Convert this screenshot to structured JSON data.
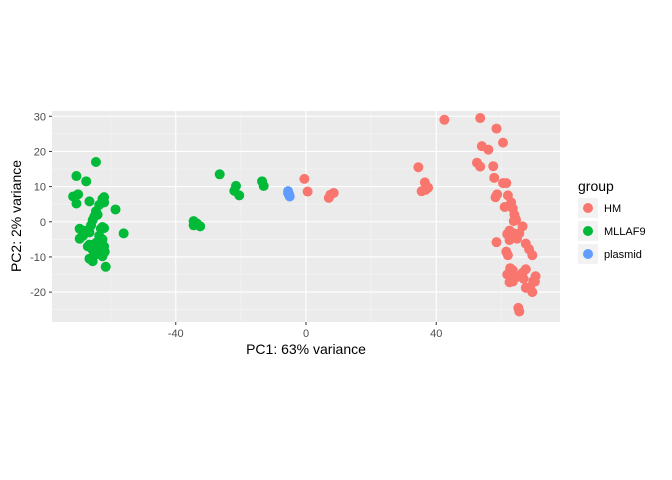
{
  "chart_data": {
    "type": "scatter",
    "xlabel": "PC1: 63% variance",
    "ylabel": "PC2: 2% variance",
    "xlim": [
      -78,
      78
    ],
    "ylim": [
      -28.5,
      31.5
    ],
    "x_ticks": [
      -40,
      0,
      40
    ],
    "y_ticks": [
      -20,
      -10,
      0,
      10,
      20,
      30
    ],
    "grid": true,
    "legend": {
      "title": "group",
      "position": "right"
    },
    "series": [
      {
        "name": "HM",
        "color": "#F8766D",
        "points": [
          [
            -0.5,
            12.2
          ],
          [
            0.5,
            8.6
          ],
          [
            7,
            6.8
          ],
          [
            7.5,
            7.7
          ],
          [
            8.5,
            8.2
          ],
          [
            34.5,
            15.5
          ],
          [
            35.5,
            8.7
          ],
          [
            36.5,
            11.2
          ],
          [
            37.5,
            9.7
          ],
          [
            36.8,
            9.1
          ],
          [
            42.5,
            29
          ],
          [
            53.5,
            29.5
          ],
          [
            52.5,
            16.8
          ],
          [
            53.5,
            15.7
          ],
          [
            54,
            21.5
          ],
          [
            56,
            20.5
          ],
          [
            57.5,
            15.8
          ],
          [
            58.5,
            26.5
          ],
          [
            57.8,
            12.5
          ],
          [
            58.2,
            7
          ],
          [
            58.7,
            7.8
          ],
          [
            58.5,
            -5.8
          ],
          [
            60.5,
            22.5
          ],
          [
            60.5,
            11
          ],
          [
            61.5,
            11
          ],
          [
            61,
            4.2
          ],
          [
            62,
            7.5
          ],
          [
            63,
            5.5
          ],
          [
            63.5,
            3.8
          ],
          [
            64,
            2
          ],
          [
            63.8,
            0.2
          ],
          [
            64.5,
            0.6
          ],
          [
            62.5,
            -2.5
          ],
          [
            61.8,
            -3.5
          ],
          [
            62.5,
            -5.2
          ],
          [
            61.5,
            -8.5
          ],
          [
            62,
            -9.5
          ],
          [
            63.8,
            -3.3
          ],
          [
            64.8,
            -4.8
          ],
          [
            65.5,
            -3.3
          ],
          [
            66.5,
            -1.3
          ],
          [
            67.5,
            -6.2
          ],
          [
            68.5,
            -7.8
          ],
          [
            69.5,
            -9.5
          ],
          [
            70.5,
            -15.5
          ],
          [
            69.8,
            -16.8
          ],
          [
            68.8,
            -18.5
          ],
          [
            69.5,
            -20
          ],
          [
            70.3,
            -17
          ],
          [
            67.5,
            -13.5
          ],
          [
            66.5,
            -14.5
          ],
          [
            65.5,
            -15.5
          ],
          [
            64.5,
            -15.8
          ],
          [
            63.5,
            -17
          ],
          [
            62.5,
            -17.2
          ],
          [
            61.8,
            -15
          ],
          [
            62.7,
            -13.2
          ],
          [
            63.5,
            -13.8
          ],
          [
            66.8,
            -16.2
          ],
          [
            67.5,
            -18.8
          ],
          [
            65.2,
            -24.5
          ],
          [
            65.5,
            -25.5
          ]
        ]
      },
      {
        "name": "MLLAF9",
        "color": "#00BA38",
        "points": [
          [
            -71.5,
            7.2
          ],
          [
            -70.5,
            13
          ],
          [
            -70.5,
            5.2
          ],
          [
            -70,
            7.8
          ],
          [
            -69.5,
            -2
          ],
          [
            -69.5,
            -4.8
          ],
          [
            -68.5,
            -4
          ],
          [
            -67.5,
            11.5
          ],
          [
            -66.5,
            5.8
          ],
          [
            -66,
            -1
          ],
          [
            -65.5,
            0.5
          ],
          [
            -65,
            1.5
          ],
          [
            -64.5,
            3
          ],
          [
            -64,
            2
          ],
          [
            -64.5,
            17
          ],
          [
            -63.5,
            4.8
          ],
          [
            -62.5,
            6.5
          ],
          [
            -62,
            7
          ],
          [
            -62,
            5.5
          ],
          [
            -66.5,
            -3
          ],
          [
            -67.5,
            -2.5
          ],
          [
            -66.5,
            -6.5
          ],
          [
            -65.5,
            -8
          ],
          [
            -64.5,
            -6
          ],
          [
            -63.5,
            -4
          ],
          [
            -63,
            -2
          ],
          [
            -62.5,
            -1.5
          ],
          [
            -62,
            -1.8
          ],
          [
            -62.5,
            -5
          ],
          [
            -62,
            -7
          ],
          [
            -61.8,
            -8.5
          ],
          [
            -62.5,
            -9.8
          ],
          [
            -61.5,
            -12.8
          ],
          [
            -66.5,
            -10.5
          ],
          [
            -65.5,
            -11.2
          ],
          [
            -65,
            -9.5
          ],
          [
            -63.5,
            -7.5
          ],
          [
            -67,
            -7
          ],
          [
            -58.5,
            3.5
          ],
          [
            -56,
            -3.3
          ],
          [
            -34.5,
            0.2
          ],
          [
            -34.5,
            -1
          ],
          [
            -33.5,
            -0.5
          ],
          [
            -32.5,
            -1.3
          ],
          [
            -26.5,
            13.5
          ],
          [
            -22,
            8.8
          ],
          [
            -21.5,
            10.2
          ],
          [
            -20.5,
            7.5
          ],
          [
            -13.5,
            11.5
          ],
          [
            -13,
            10.2
          ]
        ]
      },
      {
        "name": "plasmid",
        "color": "#619CFF",
        "points": [
          [
            -5.5,
            8.7
          ],
          [
            -5.2,
            7.8
          ],
          [
            -5.0,
            7.2
          ],
          [
            -5.5,
            8.1
          ]
        ]
      }
    ]
  }
}
